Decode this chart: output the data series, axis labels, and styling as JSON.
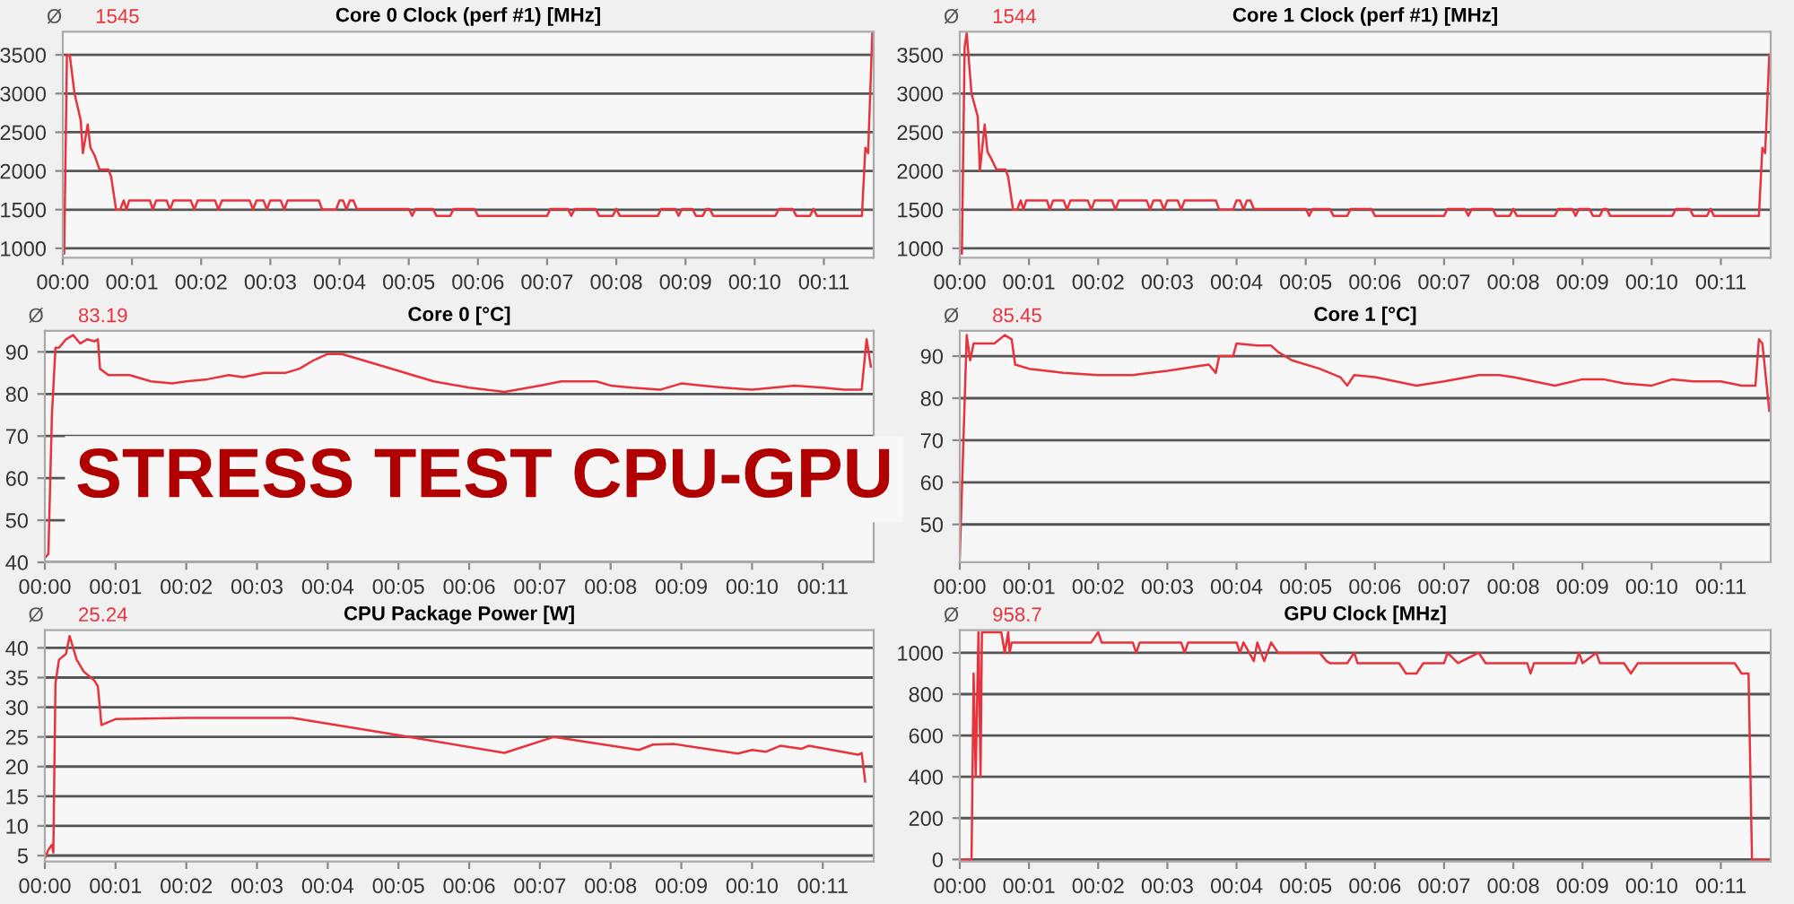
{
  "chart_data": [
    {
      "type": "line",
      "title": "Core 0 Clock (perf #1) [MHz]",
      "annotations": [
        "Ø",
        "1545"
      ],
      "grid": "y",
      "marker": "none",
      "line_style": "solid",
      "xlim": [
        0,
        11.72
      ],
      "ylim": [
        880,
        3800
      ],
      "xticks": [
        {
          "value": 0,
          "label": "00:00"
        },
        {
          "value": 1,
          "label": "00:01"
        },
        {
          "value": 2,
          "label": "00:02"
        },
        {
          "value": 3,
          "label": "00:03"
        },
        {
          "value": 4,
          "label": "00:04"
        },
        {
          "value": 5,
          "label": "00:05"
        },
        {
          "value": 6,
          "label": "00:06"
        },
        {
          "value": 7,
          "label": "00:07"
        },
        {
          "value": 8,
          "label": "00:08"
        },
        {
          "value": 9,
          "label": "00:09"
        },
        {
          "value": 10,
          "label": "00:10"
        },
        {
          "value": 11,
          "label": "00:11"
        }
      ],
      "yticks": [
        1000,
        1500,
        2000,
        2500,
        3000,
        3500
      ],
      "series": [
        {
          "color": "#e8323c",
          "x": [
            0,
            0.02,
            0.06,
            0.1,
            0.17,
            0.26,
            0.29,
            0.36,
            0.4,
            0.46,
            0.53,
            0.66,
            0.7,
            0.77,
            0.83,
            0.88,
            0.92,
            0.96,
            1.0,
            1.26,
            1.3,
            1.35,
            1.5,
            1.55,
            1.6,
            1.85,
            1.9,
            1.95,
            2.2,
            2.25,
            2.3,
            2.7,
            2.75,
            2.8,
            2.9,
            2.95,
            3.0,
            3.15,
            3.2,
            3.25,
            3.7,
            3.75,
            3.8,
            3.95,
            4.0,
            4.05,
            4.1,
            4.15,
            4.2,
            4.25,
            5.0,
            5.05,
            5.1,
            5.35,
            5.4,
            5.6,
            5.65,
            5.95,
            6.0,
            7.0,
            7.05,
            7.3,
            7.35,
            7.4,
            7.7,
            7.75,
            7.95,
            8.0,
            8.05,
            8.6,
            8.65,
            8.85,
            8.9,
            8.95,
            9.1,
            9.15,
            9.25,
            9.3,
            9.35,
            9.4,
            10.3,
            10.35,
            10.55,
            10.6,
            10.8,
            10.85,
            10.9,
            11.55,
            11.6,
            11.64,
            11.7
          ],
          "values": [
            1200,
            930,
            3500,
            3500,
            3000,
            2650,
            2230,
            2600,
            2300,
            2200,
            2020,
            2020,
            1920,
            1500,
            1500,
            1620,
            1500,
            1620,
            1620,
            1620,
            1500,
            1620,
            1620,
            1500,
            1620,
            1620,
            1500,
            1620,
            1620,
            1500,
            1620,
            1620,
            1500,
            1620,
            1620,
            1500,
            1620,
            1620,
            1500,
            1620,
            1620,
            1500,
            1500,
            1500,
            1620,
            1620,
            1500,
            1620,
            1620,
            1510,
            1510,
            1420,
            1510,
            1510,
            1420,
            1420,
            1510,
            1510,
            1420,
            1420,
            1510,
            1510,
            1420,
            1510,
            1510,
            1420,
            1420,
            1510,
            1420,
            1420,
            1510,
            1510,
            1420,
            1510,
            1510,
            1420,
            1420,
            1510,
            1510,
            1420,
            1420,
            1510,
            1510,
            1420,
            1420,
            1510,
            1420,
            1420,
            2300,
            2230,
            3780
          ]
        }
      ]
    },
    {
      "type": "line",
      "title": "Core 1 Clock (perf #1) [MHz]",
      "annotations": [
        "Ø",
        "1544"
      ],
      "grid": "y",
      "marker": "none",
      "line_style": "solid",
      "xlim": [
        0,
        11.72
      ],
      "ylim": [
        880,
        3800
      ],
      "xticks": [
        {
          "value": 0,
          "label": "00:00"
        },
        {
          "value": 1,
          "label": "00:01"
        },
        {
          "value": 2,
          "label": "00:02"
        },
        {
          "value": 3,
          "label": "00:03"
        },
        {
          "value": 4,
          "label": "00:04"
        },
        {
          "value": 5,
          "label": "00:05"
        },
        {
          "value": 6,
          "label": "00:06"
        },
        {
          "value": 7,
          "label": "00:07"
        },
        {
          "value": 8,
          "label": "00:08"
        },
        {
          "value": 9,
          "label": "00:09"
        },
        {
          "value": 10,
          "label": "00:10"
        },
        {
          "value": 11,
          "label": "00:11"
        }
      ],
      "yticks": [
        1000,
        1500,
        2000,
        2500,
        3000,
        3500
      ],
      "series": [
        {
          "color": "#e8323c",
          "x": [
            0,
            0.03,
            0.07,
            0.1,
            0.17,
            0.26,
            0.29,
            0.36,
            0.4,
            0.46,
            0.53,
            0.66,
            0.7,
            0.77,
            0.83,
            0.88,
            0.92,
            0.96,
            1.0,
            1.26,
            1.3,
            1.35,
            1.5,
            1.55,
            1.6,
            1.85,
            1.9,
            1.95,
            2.2,
            2.25,
            2.3,
            2.7,
            2.75,
            2.8,
            2.9,
            2.95,
            3.0,
            3.15,
            3.2,
            3.25,
            3.7,
            3.75,
            3.8,
            3.95,
            4.0,
            4.05,
            4.1,
            4.15,
            4.2,
            4.25,
            5.0,
            5.05,
            5.1,
            5.35,
            5.4,
            5.6,
            5.65,
            5.95,
            6.0,
            7.0,
            7.05,
            7.3,
            7.35,
            7.4,
            7.7,
            7.75,
            7.95,
            8.0,
            8.05,
            8.6,
            8.65,
            8.85,
            8.9,
            8.95,
            9.1,
            9.15,
            9.25,
            9.3,
            9.35,
            9.4,
            10.3,
            10.35,
            10.55,
            10.6,
            10.8,
            10.85,
            10.9,
            11.55,
            11.6,
            11.64,
            11.7
          ],
          "values": [
            1000,
            930,
            3600,
            3780,
            3000,
            2700,
            2000,
            2600,
            2250,
            2150,
            2020,
            2020,
            1920,
            1500,
            1500,
            1620,
            1500,
            1620,
            1620,
            1620,
            1500,
            1620,
            1620,
            1500,
            1620,
            1620,
            1500,
            1620,
            1620,
            1500,
            1620,
            1620,
            1500,
            1620,
            1620,
            1500,
            1620,
            1620,
            1500,
            1620,
            1620,
            1500,
            1500,
            1500,
            1620,
            1620,
            1500,
            1620,
            1620,
            1510,
            1510,
            1420,
            1510,
            1510,
            1420,
            1420,
            1510,
            1510,
            1420,
            1420,
            1510,
            1510,
            1420,
            1510,
            1510,
            1420,
            1420,
            1510,
            1420,
            1420,
            1510,
            1510,
            1420,
            1510,
            1510,
            1420,
            1420,
            1510,
            1510,
            1420,
            1420,
            1510,
            1510,
            1420,
            1420,
            1510,
            1420,
            1420,
            2300,
            2230,
            3500
          ]
        }
      ]
    },
    {
      "type": "line",
      "title": "Core 0 [°C]",
      "annotations": [
        "Ø",
        "83.19"
      ],
      "grid": "y",
      "marker": "none",
      "line_style": "solid",
      "xlim": [
        0,
        11.72
      ],
      "ylim": [
        40,
        95
      ],
      "xticks": [
        {
          "value": 0,
          "label": "00:00"
        },
        {
          "value": 1,
          "label": "00:01"
        },
        {
          "value": 2,
          "label": "00:02"
        },
        {
          "value": 3,
          "label": "00:03"
        },
        {
          "value": 4,
          "label": "00:04"
        },
        {
          "value": 5,
          "label": "00:05"
        },
        {
          "value": 6,
          "label": "00:06"
        },
        {
          "value": 7,
          "label": "00:07"
        },
        {
          "value": 8,
          "label": "00:08"
        },
        {
          "value": 9,
          "label": "00:09"
        },
        {
          "value": 10,
          "label": "00:10"
        },
        {
          "value": 11,
          "label": "00:11"
        }
      ],
      "yticks": [
        40,
        50,
        60,
        70,
        80,
        90
      ],
      "series": [
        {
          "color": "#e8323c",
          "x": [
            0,
            0.05,
            0.1,
            0.15,
            0.2,
            0.3,
            0.4,
            0.5,
            0.6,
            0.7,
            0.75,
            0.78,
            0.9,
            1.2,
            1.5,
            1.8,
            2.0,
            2.3,
            2.6,
            2.8,
            3.1,
            3.4,
            3.6,
            3.8,
            4.0,
            4.2,
            4.5,
            4.8,
            5.2,
            5.5,
            6.0,
            6.5,
            7.0,
            7.3,
            7.8,
            8.0,
            8.3,
            8.7,
            9.0,
            9.3,
            9.6,
            10.0,
            10.3,
            10.6,
            11.0,
            11.3,
            11.55,
            11.62,
            11.68
          ],
          "values": [
            41,
            42,
            75,
            91,
            91,
            93,
            94,
            92,
            93,
            92.5,
            93,
            86,
            84.5,
            84.5,
            83,
            82.5,
            83,
            83.5,
            84.5,
            84,
            85,
            85,
            86,
            88,
            89.5,
            89.5,
            88,
            86.5,
            84.5,
            83,
            81.5,
            80.5,
            82,
            83,
            83,
            82,
            81.5,
            81,
            82.5,
            82,
            81.5,
            81,
            81.5,
            82,
            81.5,
            81,
            81,
            93,
            86.5
          ]
        }
      ]
    },
    {
      "type": "line",
      "title": "Core 1 [°C]",
      "annotations": [
        "Ø",
        "85.45"
      ],
      "grid": "y",
      "marker": "none",
      "line_style": "solid",
      "xlim": [
        0,
        11.72
      ],
      "ylim": [
        41,
        96
      ],
      "xticks": [
        {
          "value": 0,
          "label": "00:00"
        },
        {
          "value": 1,
          "label": "00:01"
        },
        {
          "value": 2,
          "label": "00:02"
        },
        {
          "value": 3,
          "label": "00:03"
        },
        {
          "value": 4,
          "label": "00:04"
        },
        {
          "value": 5,
          "label": "00:05"
        },
        {
          "value": 6,
          "label": "00:06"
        },
        {
          "value": 7,
          "label": "00:07"
        },
        {
          "value": 8,
          "label": "00:08"
        },
        {
          "value": 9,
          "label": "00:09"
        },
        {
          "value": 10,
          "label": "00:10"
        },
        {
          "value": 11,
          "label": "00:11"
        }
      ],
      "yticks": [
        50,
        60,
        70,
        80,
        90
      ],
      "series": [
        {
          "color": "#e8323c",
          "x": [
            0,
            0.1,
            0.15,
            0.2,
            0.5,
            0.65,
            0.75,
            0.8,
            1.0,
            1.5,
            2.0,
            2.5,
            3.0,
            3.4,
            3.6,
            3.7,
            3.75,
            3.95,
            4.0,
            4.3,
            4.5,
            4.6,
            4.8,
            5.2,
            5.5,
            5.6,
            5.7,
            6.0,
            6.3,
            6.6,
            7.0,
            7.5,
            7.8,
            8.0,
            8.3,
            8.6,
            9.0,
            9.3,
            9.6,
            10.0,
            10.3,
            10.6,
            11.0,
            11.3,
            11.5,
            11.55,
            11.6,
            11.7
          ],
          "values": [
            42,
            95,
            89,
            93,
            93,
            95,
            94,
            88,
            87,
            86,
            85.5,
            85.5,
            86.5,
            87.5,
            88,
            86,
            90,
            90,
            93,
            92.5,
            92.5,
            91,
            89,
            87,
            85,
            83,
            85.5,
            85,
            84,
            83,
            84,
            85.5,
            85.5,
            85,
            84,
            83,
            84.5,
            84.5,
            83.5,
            83,
            84.5,
            84,
            84,
            83,
            83,
            94,
            93,
            77
          ]
        }
      ]
    },
    {
      "type": "line",
      "title": "CPU Package Power [W]",
      "annotations": [
        "Ø",
        "25.24"
      ],
      "grid": "y",
      "marker": "none",
      "line_style": "solid",
      "xlim": [
        0,
        11.72
      ],
      "ylim": [
        4,
        43
      ],
      "xticks": [
        {
          "value": 0,
          "label": "00:00"
        },
        {
          "value": 1,
          "label": "00:01"
        },
        {
          "value": 2,
          "label": "00:02"
        },
        {
          "value": 3,
          "label": "00:03"
        },
        {
          "value": 4,
          "label": "00:04"
        },
        {
          "value": 5,
          "label": "00:05"
        },
        {
          "value": 6,
          "label": "00:06"
        },
        {
          "value": 7,
          "label": "00:07"
        },
        {
          "value": 8,
          "label": "00:08"
        },
        {
          "value": 9,
          "label": "00:09"
        },
        {
          "value": 10,
          "label": "00:10"
        },
        {
          "value": 11,
          "label": "00:11"
        }
      ],
      "yticks": [
        5,
        10,
        15,
        20,
        25,
        30,
        35,
        40
      ],
      "series": [
        {
          "color": "#e8323c",
          "x": [
            0,
            0.05,
            0.1,
            0.12,
            0.15,
            0.2,
            0.25,
            0.3,
            0.35,
            0.45,
            0.55,
            0.7,
            0.75,
            0.8,
            1.0,
            2.0,
            3.5,
            5.0,
            6.5,
            7.2,
            8.4,
            8.6,
            8.9,
            9.8,
            10.0,
            10.2,
            10.4,
            10.7,
            10.8,
            11.5,
            11.55,
            11.6
          ],
          "values": [
            4.5,
            6,
            6.8,
            5.5,
            34,
            38,
            38.5,
            39,
            42,
            38,
            36,
            34.5,
            33.5,
            27,
            28,
            28.2,
            28.2,
            25.3,
            22.3,
            25,
            22.8,
            23.7,
            23.8,
            22.2,
            22.8,
            22.5,
            23.5,
            23,
            23.5,
            22,
            22.3,
            17.5
          ]
        }
      ]
    },
    {
      "type": "line",
      "title": "GPU Clock [MHz]",
      "annotations": [
        "Ø",
        "958.7"
      ],
      "grid": "y",
      "marker": "none",
      "line_style": "solid",
      "xlim": [
        0,
        11.72
      ],
      "ylim": [
        -10,
        1110
      ],
      "xticks": [
        {
          "value": 0,
          "label": "00:00"
        },
        {
          "value": 1,
          "label": "00:01"
        },
        {
          "value": 2,
          "label": "00:02"
        },
        {
          "value": 3,
          "label": "00:03"
        },
        {
          "value": 4,
          "label": "00:04"
        },
        {
          "value": 5,
          "label": "00:05"
        },
        {
          "value": 6,
          "label": "00:06"
        },
        {
          "value": 7,
          "label": "00:07"
        },
        {
          "value": 8,
          "label": "00:08"
        },
        {
          "value": 9,
          "label": "00:09"
        },
        {
          "value": 10,
          "label": "00:10"
        },
        {
          "value": 11,
          "label": "00:11"
        }
      ],
      "yticks": [
        0,
        200,
        400,
        600,
        800,
        1000
      ],
      "series": [
        {
          "color": "#e8323c",
          "x": [
            0,
            0.17,
            0.2,
            0.23,
            0.27,
            0.3,
            0.32,
            0.6,
            0.65,
            0.7,
            0.72,
            0.75,
            1.9,
            2.0,
            2.05,
            2.5,
            2.55,
            2.6,
            3.2,
            3.25,
            3.3,
            4.0,
            4.05,
            4.1,
            4.25,
            4.3,
            4.4,
            4.5,
            4.6,
            5.2,
            5.3,
            5.35,
            5.6,
            5.7,
            5.75,
            6.35,
            6.45,
            6.6,
            6.7,
            7.0,
            7.05,
            7.2,
            7.5,
            7.6,
            8.2,
            8.25,
            8.3,
            8.9,
            8.95,
            9.0,
            9.2,
            9.25,
            9.6,
            9.7,
            9.8,
            11.2,
            11.3,
            11.4,
            11.45,
            11.7
          ],
          "values": [
            0,
            0,
            900,
            400,
            1100,
            400,
            1100,
            1100,
            1000,
            1100,
            1000,
            1050,
            1050,
            1100,
            1050,
            1050,
            1000,
            1050,
            1050,
            1000,
            1050,
            1050,
            1000,
            1050,
            960,
            1050,
            960,
            1050,
            1000,
            1000,
            960,
            950,
            950,
            1000,
            950,
            950,
            900,
            900,
            950,
            950,
            1000,
            950,
            1000,
            950,
            950,
            900,
            950,
            950,
            1000,
            950,
            1000,
            950,
            950,
            900,
            950,
            950,
            900,
            900,
            0,
            0
          ]
        }
      ]
    },
    {
      "type": "other",
      "title": "STRESS TEST CPU-GPU",
      "color": "#b00000"
    }
  ]
}
